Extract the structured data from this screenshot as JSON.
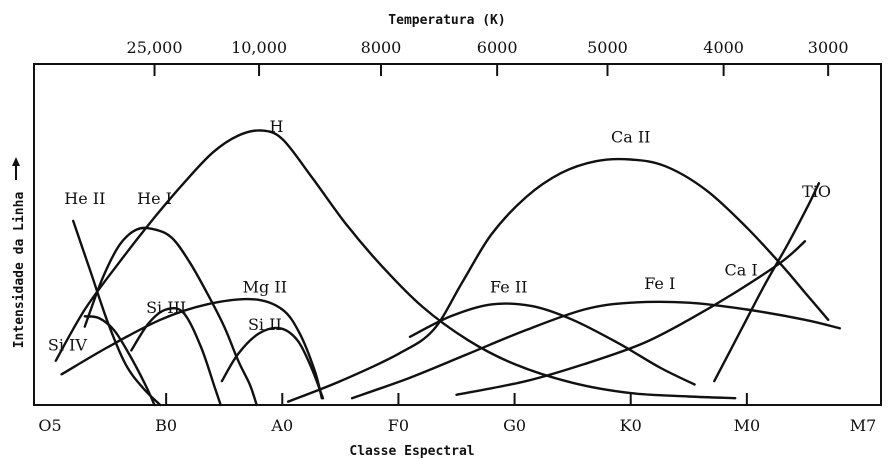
{
  "chart_data": {
    "type": "line",
    "title": "",
    "xlabel": "Classe Espectral",
    "ylabel": "Intensidade da Linha",
    "x2label": "Temperatura (K)",
    "x_ticks": [
      "O5",
      "B0",
      "A0",
      "F0",
      "G0",
      "K0",
      "M0",
      "M7"
    ],
    "x_range": [
      0,
      7
    ],
    "temperature_ticks": [
      {
        "label": "25,000",
        "x": 0.9
      },
      {
        "label": "10,000",
        "x": 1.8
      },
      {
        "label": "8000",
        "x": 2.85
      },
      {
        "label": "6000",
        "x": 3.85
      },
      {
        "label": "5000",
        "x": 4.8
      },
      {
        "label": "4000",
        "x": 5.8
      },
      {
        "label": "3000",
        "x": 6.7
      }
    ],
    "ylim": [
      0,
      100
    ],
    "y_arrow": true,
    "grid": false,
    "series": [
      {
        "name": "He II",
        "label_at": [
          0.3,
          59
        ],
        "points": [
          [
            0.2,
            54
          ],
          [
            0.35,
            39
          ],
          [
            0.5,
            24
          ],
          [
            0.65,
            12
          ],
          [
            0.8,
            5
          ],
          [
            0.95,
            0
          ]
        ]
      },
      {
        "name": "He I",
        "label_at": [
          0.9,
          59
        ],
        "points": [
          [
            0.3,
            23
          ],
          [
            0.45,
            37
          ],
          [
            0.6,
            47
          ],
          [
            0.75,
            51.5
          ],
          [
            0.9,
            51.5
          ],
          [
            1.05,
            49
          ],
          [
            1.2,
            42
          ],
          [
            1.35,
            33
          ],
          [
            1.5,
            23
          ],
          [
            1.62,
            13
          ],
          [
            1.72,
            6
          ],
          [
            1.78,
            0
          ]
        ]
      },
      {
        "name": "Si IV",
        "label_at": [
          0.15,
          16
        ],
        "points": [
          [
            0.3,
            26
          ],
          [
            0.42,
            25.5
          ],
          [
            0.55,
            22
          ],
          [
            0.68,
            15
          ],
          [
            0.82,
            6
          ],
          [
            0.9,
            0
          ]
        ]
      },
      {
        "name": "Si III",
        "label_at": [
          1.0,
          27
        ],
        "points": [
          [
            0.7,
            16
          ],
          [
            0.85,
            24
          ],
          [
            1.0,
            28
          ],
          [
            1.15,
            27
          ],
          [
            1.3,
            17
          ],
          [
            1.42,
            5
          ],
          [
            1.47,
            0
          ]
        ]
      },
      {
        "name": "Si II",
        "label_at": [
          1.85,
          22
        ],
        "points": [
          [
            1.48,
            7
          ],
          [
            1.62,
            15
          ],
          [
            1.8,
            21
          ],
          [
            1.98,
            22.5
          ],
          [
            2.13,
            19
          ],
          [
            2.25,
            11
          ],
          [
            2.35,
            2
          ]
        ]
      },
      {
        "name": "Mg II",
        "label_at": [
          1.85,
          33
        ],
        "points": [
          [
            0.1,
            9
          ],
          [
            0.5,
            17
          ],
          [
            0.95,
            25
          ],
          [
            1.35,
            29.5
          ],
          [
            1.75,
            31
          ],
          [
            2.0,
            28
          ],
          [
            2.15,
            21
          ],
          [
            2.28,
            10
          ],
          [
            2.34,
            2
          ]
        ]
      },
      {
        "name": "H",
        "label_at": [
          1.95,
          80
        ],
        "points": [
          [
            0.05,
            13
          ],
          [
            0.3,
            28
          ],
          [
            0.6,
            42
          ],
          [
            0.9,
            55
          ],
          [
            1.15,
            65
          ],
          [
            1.4,
            74
          ],
          [
            1.62,
            79
          ],
          [
            1.82,
            80.5
          ],
          [
            2.0,
            78
          ],
          [
            2.25,
            67
          ],
          [
            2.55,
            53
          ],
          [
            2.85,
            41
          ],
          [
            3.2,
            29
          ],
          [
            3.6,
            19
          ],
          [
            4.0,
            12
          ],
          [
            4.5,
            6.5
          ],
          [
            5.0,
            3.5
          ],
          [
            5.5,
            2.5
          ],
          [
            5.9,
            2
          ]
        ]
      },
      {
        "name": "Ca II",
        "label_at": [
          5.0,
          77
        ],
        "points": [
          [
            2.05,
            1
          ],
          [
            2.5,
            7
          ],
          [
            3.0,
            15
          ],
          [
            3.3,
            22
          ],
          [
            3.55,
            36
          ],
          [
            3.8,
            50
          ],
          [
            4.1,
            61
          ],
          [
            4.4,
            68
          ],
          [
            4.7,
            71.5
          ],
          [
            5.0,
            72
          ],
          [
            5.3,
            70
          ],
          [
            5.65,
            63
          ],
          [
            6.0,
            52
          ],
          [
            6.3,
            41
          ],
          [
            6.5,
            33
          ],
          [
            6.7,
            25
          ]
        ]
      },
      {
        "name": "Fe II",
        "label_at": [
          3.95,
          33
        ],
        "points": [
          [
            3.1,
            20
          ],
          [
            3.45,
            26
          ],
          [
            3.8,
            29.5
          ],
          [
            4.15,
            29
          ],
          [
            4.5,
            25
          ],
          [
            4.9,
            18
          ],
          [
            5.25,
            11
          ],
          [
            5.55,
            6
          ]
        ]
      },
      {
        "name": "Fe I",
        "label_at": [
          5.25,
          34
        ],
        "points": [
          [
            2.6,
            2
          ],
          [
            3.1,
            8
          ],
          [
            3.6,
            15
          ],
          [
            4.1,
            22
          ],
          [
            4.6,
            28
          ],
          [
            5.0,
            30
          ],
          [
            5.5,
            30
          ],
          [
            6.0,
            28
          ],
          [
            6.5,
            25
          ],
          [
            6.8,
            22.5
          ]
        ]
      },
      {
        "name": "Ca I",
        "label_at": [
          5.95,
          38
        ],
        "points": [
          [
            3.5,
            3
          ],
          [
            4.1,
            7
          ],
          [
            4.6,
            12
          ],
          [
            5.1,
            18
          ],
          [
            5.5,
            25
          ],
          [
            5.9,
            33
          ],
          [
            6.3,
            42
          ],
          [
            6.5,
            48
          ]
        ]
      },
      {
        "name": "TiO",
        "label_at": [
          6.6,
          61
        ],
        "points": [
          [
            5.72,
            7
          ],
          [
            5.95,
            22
          ],
          [
            6.15,
            35
          ],
          [
            6.35,
            47
          ],
          [
            6.52,
            58
          ],
          [
            6.62,
            65
          ]
        ]
      }
    ]
  }
}
